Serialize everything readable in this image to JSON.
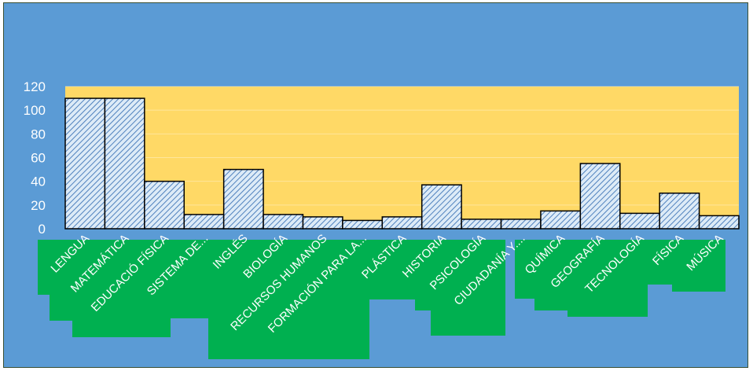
{
  "chart_data": {
    "type": "bar",
    "title": "",
    "xlabel": "",
    "ylabel": "",
    "ylim": [
      0,
      120
    ],
    "yticks": [
      "0",
      "20",
      "40",
      "60",
      "80",
      "100",
      "120"
    ],
    "grid": true,
    "legend": "none",
    "categories": [
      "LENGUA",
      "MATEMÁTICA",
      "EDUCACIÓ FÍSICA",
      "SISTEMA DE...",
      "INGLÉS",
      "BIOLOGÍA",
      "RECURSOS HUMANOS",
      "FORMACIÓN PARA LA...",
      "PLÁSTICA",
      "HISTORIA",
      "PSICOLOGÍA",
      "CIUDADANÍA Y....",
      "QUÍMICA",
      "GEOGRAFÍA",
      "TECNOLOGÍA",
      "FÍSICA",
      "MÚSICA"
    ],
    "values": [
      110,
      110,
      40,
      12,
      50,
      12,
      10,
      7,
      10,
      37,
      8,
      8,
      15,
      55,
      13,
      30,
      11
    ]
  },
  "colors": {
    "background": "#5B9BD5",
    "plot_area": "#FFD966",
    "bar_fill": "#DDEBF7",
    "bar_hatch": "#4F81BD",
    "bar_edge": "#000000",
    "label_fill": "#00B050",
    "text": "#ffffff"
  }
}
